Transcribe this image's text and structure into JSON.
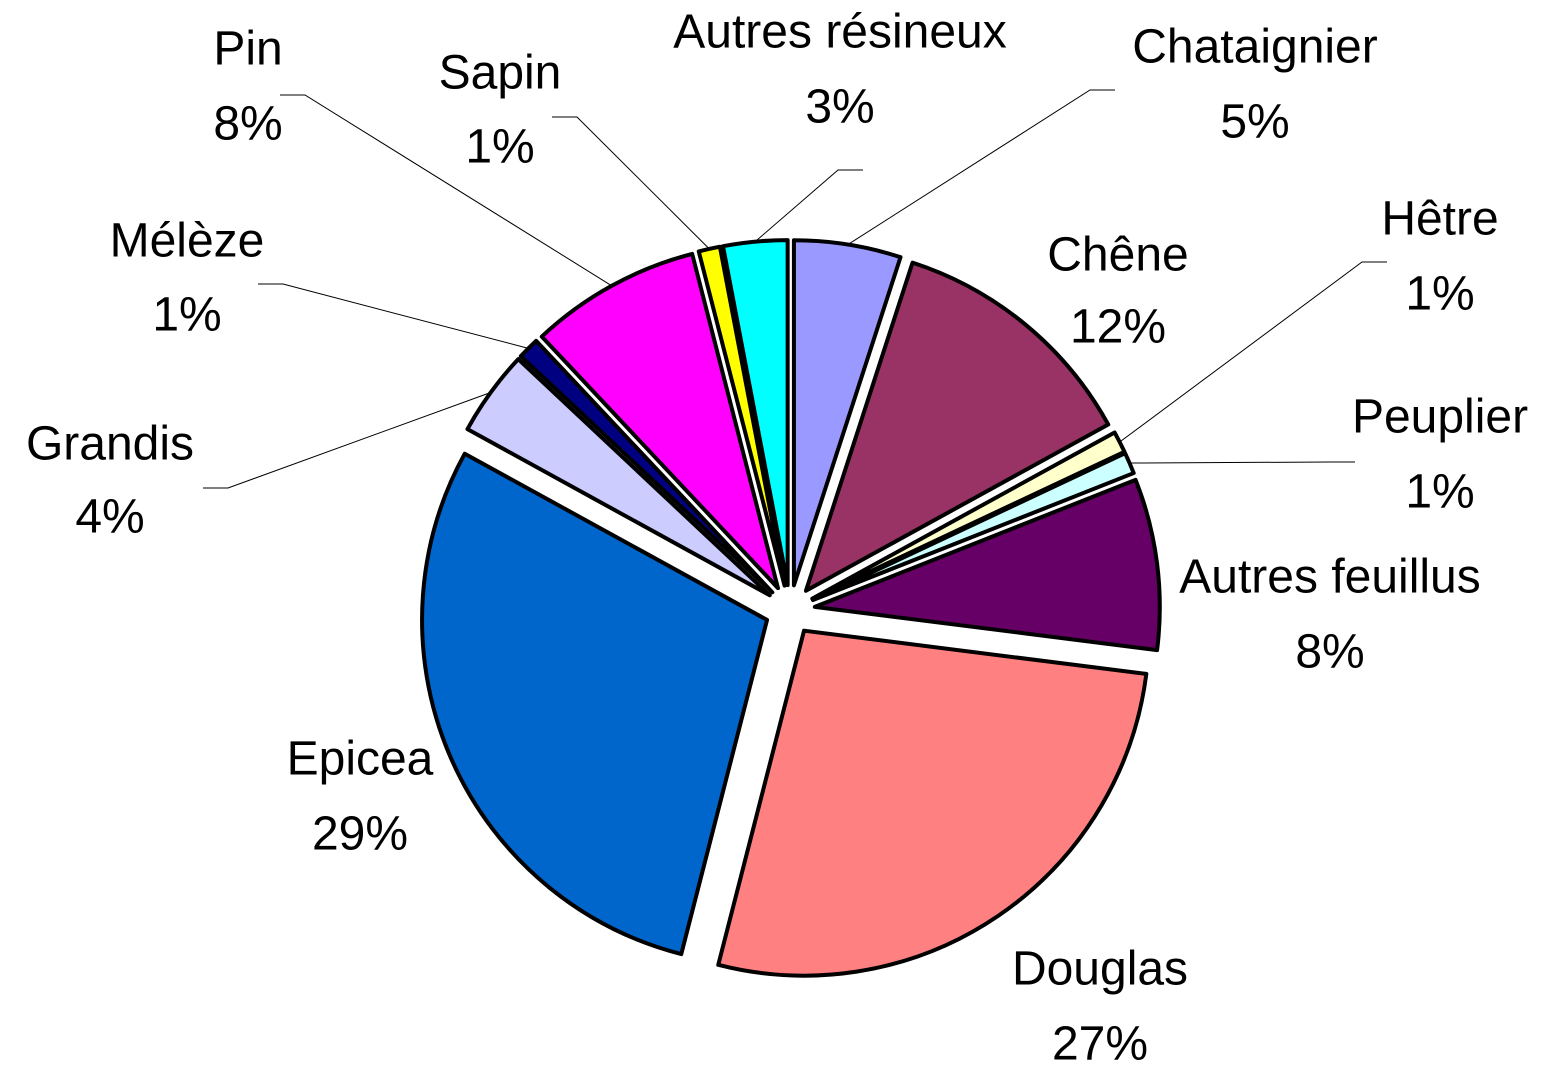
{
  "chart_data": {
    "type": "pie",
    "categories": [
      "Chataignier",
      "Chêne",
      "Hêtre",
      "Peuplier",
      "Autres feuillus",
      "Douglas",
      "Epicea",
      "Grandis",
      "Mélèze",
      "Pin",
      "Sapin",
      "Autres résineux"
    ],
    "values": [
      5,
      12,
      1,
      1,
      8,
      27,
      29,
      4,
      1,
      8,
      1,
      3
    ],
    "value_labels": [
      "5%",
      "12%",
      "1%",
      "1%",
      "8%",
      "27%",
      "29%",
      "4%",
      "1%",
      "8%",
      "1%",
      "3%"
    ],
    "colors": [
      "#9999ff",
      "#993366",
      "#ffffcc",
      "#ccffff",
      "#660066",
      "#ff8080",
      "#0066cc",
      "#ccccff",
      "#000080",
      "#ff00ff",
      "#ffff00",
      "#00ffff"
    ]
  }
}
